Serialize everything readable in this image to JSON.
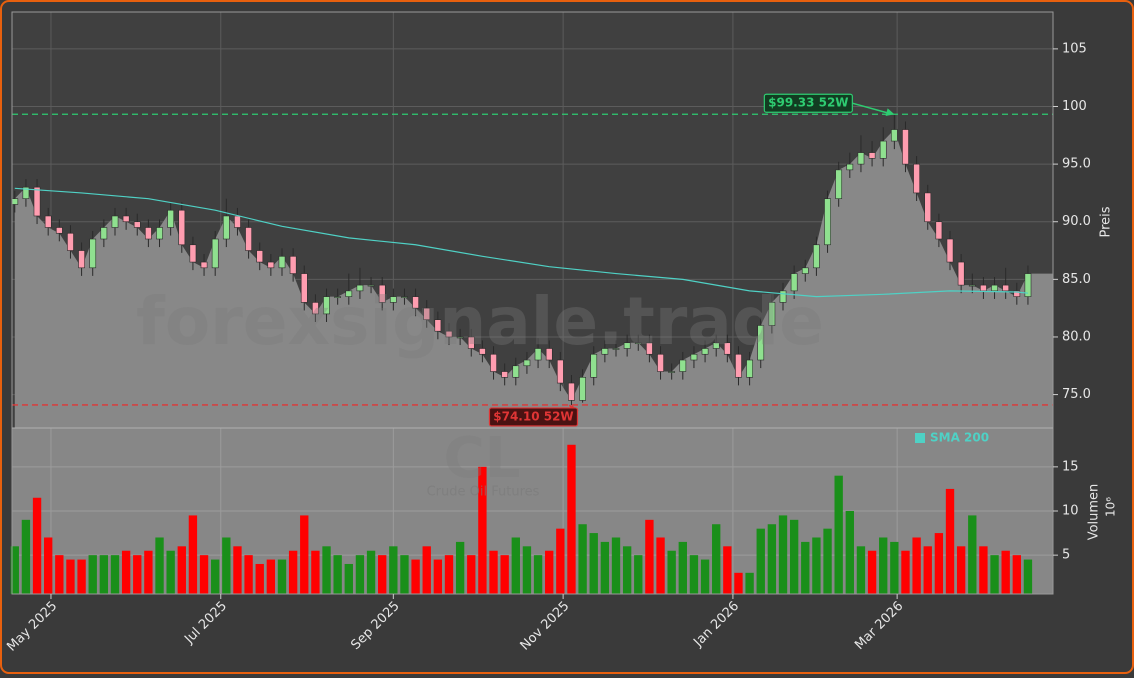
{
  "chart_data": {
    "type": "candlestick",
    "ylabel": "Preis",
    "grid": true,
    "candle_colors": {
      "up": "#8fe08f",
      "down": "#ff9db0"
    },
    "volume_colors": {
      "up": "#1a8f1a",
      "down": "#ff0000"
    },
    "xlim": [
      0,
      374
    ],
    "xticks": [
      {
        "value": 14,
        "label": "May 2025"
      },
      {
        "value": 75,
        "label": "Jul 2025"
      },
      {
        "value": 137,
        "label": "Sep 2025"
      },
      {
        "value": 198,
        "label": "Nov 2025"
      },
      {
        "value": 259,
        "label": "Jan 2026"
      },
      {
        "value": 318,
        "label": "Mar 2026"
      }
    ],
    "ylim": [
      72.1,
      108.2
    ],
    "yticks": [
      {
        "value": 75,
        "label": "75.0"
      },
      {
        "value": 80,
        "label": "80.0"
      },
      {
        "value": 85,
        "label": "85.0"
      },
      {
        "value": 90,
        "label": "90.0"
      },
      {
        "value": 95,
        "label": "95.0"
      },
      100,
      105
    ],
    "x": [
      1,
      5,
      9,
      13,
      17,
      21,
      25,
      29,
      33,
      37,
      41,
      45,
      49,
      53,
      57,
      61,
      65,
      69,
      73,
      77,
      81,
      85,
      89,
      93,
      97,
      101,
      105,
      109,
      113,
      117,
      121,
      125,
      129,
      133,
      137,
      141,
      145,
      149,
      153,
      157,
      161,
      165,
      169,
      173,
      177,
      181,
      185,
      189,
      193,
      197,
      201,
      205,
      209,
      213,
      217,
      221,
      225,
      229,
      233,
      237,
      241,
      245,
      249,
      253,
      257,
      261,
      265,
      269,
      273,
      277,
      281,
      285,
      289,
      293,
      297,
      301,
      305,
      309,
      313,
      317,
      321,
      325,
      329,
      333,
      337,
      341,
      345,
      349,
      353,
      357,
      361,
      365
    ],
    "open": [
      91.5,
      92.0,
      93.0,
      90.5,
      89.5,
      89.0,
      87.5,
      86.0,
      88.5,
      89.5,
      90.5,
      90.0,
      89.5,
      88.5,
      89.5,
      91.0,
      88.0,
      86.5,
      86.0,
      88.5,
      90.5,
      89.5,
      87.5,
      86.5,
      86.0,
      87.0,
      85.5,
      83.0,
      82.0,
      83.5,
      83.5,
      84.0,
      84.5,
      84.5,
      83.0,
      83.5,
      83.5,
      82.5,
      81.5,
      80.5,
      80.0,
      80.0,
      79.0,
      78.5,
      77.0,
      76.5,
      77.5,
      78.0,
      79.0,
      78.0,
      76.0,
      74.5,
      76.5,
      78.5,
      79.0,
      79.0,
      79.5,
      79.5,
      78.5,
      77.0,
      77.0,
      78.0,
      78.5,
      79.0,
      79.5,
      78.5,
      76.5,
      78.0,
      81.0,
      83.0,
      84.0,
      85.5,
      86.0,
      88.0,
      92.0,
      94.5,
      95.0,
      96.0,
      95.5,
      97.0,
      98.0,
      95.0,
      92.5,
      90.0,
      88.5,
      86.5,
      84.5,
      84.5,
      84.0,
      84.5,
      84.0,
      83.5
    ],
    "high": [
      92.7,
      93.7,
      93.7,
      91.2,
      90.2,
      89.7,
      88.2,
      89.2,
      90.2,
      91.2,
      91.2,
      90.7,
      90.2,
      90.2,
      91.7,
      91.7,
      88.7,
      87.2,
      89.2,
      92.0,
      91.2,
      90.2,
      88.2,
      87.2,
      87.7,
      87.7,
      86.2,
      83.7,
      84.2,
      84.2,
      85.5,
      86.0,
      85.2,
      85.2,
      84.2,
      84.2,
      84.2,
      83.2,
      82.2,
      81.2,
      80.7,
      80.7,
      79.7,
      79.2,
      77.7,
      78.2,
      78.7,
      79.9,
      79.7,
      78.7,
      76.7,
      77.2,
      79.2,
      79.7,
      79.7,
      80.2,
      80.2,
      80.2,
      79.2,
      77.7,
      78.7,
      79.2,
      79.7,
      80.2,
      80.2,
      79.2,
      78.7,
      81.7,
      83.7,
      84.7,
      86.2,
      86.7,
      88.7,
      92.7,
      95.2,
      96.0,
      97.5,
      97.0,
      98.2,
      99.33,
      98.7,
      95.7,
      93.2,
      90.7,
      89.2,
      87.2,
      85.5,
      85.2,
      85.2,
      86.0,
      84.7,
      86.2
    ],
    "low": [
      90.8,
      91.3,
      89.8,
      88.8,
      88.3,
      86.8,
      85.3,
      85.3,
      87.8,
      88.8,
      89.3,
      88.8,
      87.8,
      87.8,
      88.8,
      87.3,
      85.8,
      85.3,
      85.3,
      87.8,
      88.8,
      86.8,
      85.8,
      85.3,
      85.3,
      84.8,
      82.3,
      81.3,
      81.3,
      82.8,
      82.8,
      83.3,
      83.8,
      82.3,
      82.3,
      82.8,
      81.8,
      80.8,
      79.8,
      79.3,
      79.3,
      78.3,
      77.8,
      76.3,
      75.8,
      75.8,
      76.8,
      77.3,
      77.3,
      75.3,
      74.1,
      74.3,
      75.8,
      77.8,
      78.3,
      78.3,
      78.8,
      77.8,
      76.3,
      76.3,
      76.3,
      77.3,
      77.8,
      78.3,
      77.8,
      75.8,
      75.8,
      77.3,
      80.3,
      82.3,
      83.3,
      84.8,
      85.3,
      87.3,
      91.3,
      93.8,
      94.3,
      94.8,
      94.8,
      96.3,
      94.3,
      91.8,
      89.3,
      87.8,
      85.8,
      83.8,
      83.8,
      83.3,
      83.3,
      83.3,
      82.8,
      82.8
    ],
    "close": [
      92.0,
      93.0,
      90.5,
      89.5,
      89.0,
      87.5,
      86.0,
      88.5,
      89.5,
      90.5,
      90.0,
      89.5,
      88.5,
      89.5,
      91.0,
      88.0,
      86.5,
      86.0,
      88.5,
      90.5,
      89.5,
      87.5,
      86.5,
      86.0,
      87.0,
      85.5,
      83.0,
      82.0,
      83.5,
      83.5,
      84.0,
      84.5,
      84.5,
      83.0,
      83.5,
      83.5,
      82.5,
      81.5,
      80.5,
      80.0,
      80.0,
      79.0,
      78.5,
      77.0,
      76.5,
      77.5,
      78.0,
      79.0,
      78.0,
      76.0,
      74.5,
      76.5,
      78.5,
      79.0,
      79.0,
      79.5,
      79.5,
      78.5,
      77.0,
      77.0,
      78.0,
      78.5,
      79.0,
      79.5,
      78.5,
      76.5,
      78.0,
      81.0,
      83.0,
      84.0,
      85.5,
      86.0,
      88.0,
      92.0,
      94.5,
      95.0,
      96.0,
      95.5,
      97.0,
      98.0,
      95.0,
      92.5,
      90.0,
      88.5,
      86.5,
      84.5,
      84.5,
      84.0,
      84.5,
      84.0,
      83.5,
      85.5
    ],
    "fill_color": "#888888",
    "sma": {
      "name": "SMA 200",
      "color": "#4fd1c5",
      "x": [
        1,
        25,
        49,
        73,
        97,
        121,
        145,
        169,
        193,
        217,
        241,
        265,
        289,
        313,
        337,
        361,
        365
      ],
      "values": [
        92.9,
        92.5,
        92.0,
        91.0,
        89.6,
        88.6,
        88.0,
        87.0,
        86.1,
        85.5,
        85.0,
        84.0,
        83.5,
        83.7,
        84.0,
        83.9,
        83.8
      ]
    },
    "hlines": [
      {
        "value": 99.33,
        "label": "$99.33 52W",
        "color": "#2ecc71"
      },
      {
        "value": 74.1,
        "label": "$74.10 52W",
        "color": "#e03535"
      }
    ],
    "volume": {
      "label": "Volumen",
      "unit": "10⁶",
      "ylim": [
        0.6,
        19.4
      ],
      "yticks": [
        5,
        10,
        15
      ],
      "values": [
        6,
        9,
        11.5,
        7,
        5,
        4.5,
        4.5,
        5,
        5,
        5,
        5.5,
        5,
        5.5,
        7,
        5.5,
        6,
        9.5,
        5,
        4.5,
        7,
        6,
        5,
        4,
        4.5,
        4.5,
        5.5,
        9.5,
        5.5,
        6,
        5,
        4,
        5,
        5.5,
        5,
        6,
        5,
        4.5,
        6,
        4.5,
        5,
        6.5,
        5,
        15,
        5.5,
        5,
        7,
        6,
        5,
        5.5,
        8,
        17.5,
        8.5,
        7.5,
        6.5,
        7,
        6,
        5,
        9,
        7,
        5.5,
        6.5,
        5,
        4.5,
        8.5,
        6,
        3,
        3,
        8,
        8.5,
        9.5,
        9,
        6.5,
        7,
        8,
        14,
        10,
        6,
        5.5,
        7,
        6.5,
        5.5,
        7,
        6,
        7.5,
        12.5,
        6,
        9.5,
        6,
        5,
        5.5,
        5,
        4.5
      ]
    },
    "watermark": {
      "site": "forexsignale.trade",
      "symbol": "CL",
      "name": "Crude Oil Futures"
    }
  }
}
